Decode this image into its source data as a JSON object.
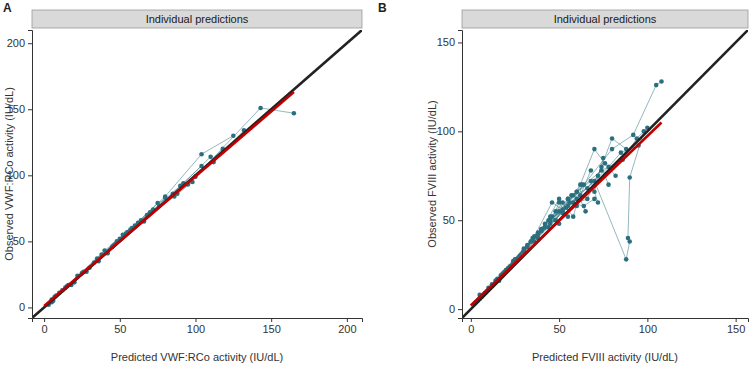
{
  "chart_data": [
    {
      "type": "scatter",
      "title": "Individual predictions",
      "annotations": [
        "A"
      ],
      "x_label": "Predicted VWF:RCo activity (IU/dL)",
      "y_label": "Observed VWF:RCo activity (IU/dL)",
      "xlim": [
        -8,
        210
      ],
      "ylim": [
        -8,
        210
      ],
      "xticks": [
        0,
        50,
        100,
        150,
        200
      ],
      "yticks": [
        0,
        50,
        100,
        150,
        200
      ],
      "grid": false,
      "series": [
        {
          "type": "scatter",
          "color": "#2b6f7f",
          "marker": "circle",
          "line_style": "solid",
          "x": [
            165,
            143,
            100,
            60,
            25,
            5
          ],
          "y": [
            147,
            151,
            99,
            61,
            26,
            6
          ]
        },
        {
          "type": "scatter",
          "color": "#2b6f7f",
          "marker": "circle",
          "line_style": "solid",
          "x": [
            125,
            104,
            80,
            50,
            20
          ],
          "y": [
            130,
            116,
            84,
            52,
            19
          ]
        },
        {
          "type": "scatter",
          "color": "#2b6f7f",
          "marker": "circle",
          "line_style": "solid",
          "x": [
            110,
            92,
            70,
            45,
            15
          ],
          "y": [
            114,
            94,
            72,
            46,
            16
          ]
        },
        {
          "type": "scatter",
          "color": "#2b6f7f",
          "marker": "circle",
          "line_style": "solid",
          "x": [
            98,
            86,
            62,
            40,
            12
          ],
          "y": [
            95,
            84,
            64,
            43,
            13
          ]
        },
        {
          "type": "scatter",
          "color": "#2b6f7f",
          "marker": "circle",
          "line_style": "solid",
          "x": [
            88,
            75,
            58,
            35,
            8
          ],
          "y": [
            86,
            79,
            60,
            37,
            9
          ]
        },
        {
          "type": "scatter",
          "color": "#2b6f7f",
          "marker": "circle",
          "line_style": "solid",
          "x": [
            80,
            66,
            52,
            30,
            5
          ],
          "y": [
            83,
            65,
            55,
            30,
            4
          ]
        },
        {
          "type": "scatter",
          "color": "#2b6f7f",
          "marker": "circle",
          "line_style": "solid",
          "x": [
            72,
            60,
            48,
            28,
            10,
            3
          ],
          "y": [
            74,
            62,
            50,
            27,
            11,
            2
          ]
        },
        {
          "type": "scatter",
          "color": "#2b6f7f",
          "marker": "circle",
          "line_style": "solid",
          "x": [
            64,
            55,
            42,
            22,
            7
          ],
          "y": [
            66,
            57,
            41,
            24,
            8
          ]
        },
        {
          "type": "scatter",
          "color": "#2b6f7f",
          "marker": "circle",
          "line_style": "solid",
          "x": [
            118,
            95,
            68,
            38,
            14
          ],
          "y": [
            120,
            93,
            70,
            40,
            15
          ]
        },
        {
          "type": "scatter",
          "color": "#2b6f7f",
          "marker": "circle",
          "line_style": "solid",
          "x": [
            132,
            112,
            85,
            47,
            18
          ],
          "y": [
            134,
            110,
            86,
            48,
            17
          ]
        },
        {
          "type": "scatter",
          "color": "#2b6f7f",
          "marker": "circle",
          "line_style": "solid",
          "x": [
            57,
            46,
            36,
            26,
            16,
            6
          ],
          "y": [
            59,
            47,
            35,
            27,
            17,
            5
          ]
        },
        {
          "type": "scatter",
          "color": "#2b6f7f",
          "marker": "circle",
          "line_style": "solid",
          "x": [
            104,
            90,
            76,
            54,
            33
          ],
          "y": [
            107,
            92,
            77,
            56,
            34
          ]
        },
        {
          "type": "line",
          "color": "#222222",
          "line_style": "solid",
          "x": [
            -8,
            210
          ],
          "y": [
            -8,
            210
          ]
        },
        {
          "type": "line",
          "color": "#c00000",
          "line_style": "solid",
          "x": [
            0,
            165
          ],
          "y": [
            1,
            163
          ]
        }
      ]
    },
    {
      "type": "scatter",
      "title": "Individual predictions",
      "annotations": [
        "B"
      ],
      "x_label": "Predicted FVIII activity (IU/dL)",
      "y_label": "Observed FVIII activity (IU/dL)",
      "xlim": [
        -5,
        157
      ],
      "ylim": [
        -5,
        157
      ],
      "xticks": [
        0,
        50,
        100,
        150
      ],
      "yticks": [
        0,
        50,
        100,
        150
      ],
      "grid": false,
      "series": [
        {
          "type": "scatter",
          "color": "#2b6f7f",
          "marker": "circle",
          "line_style": "solid",
          "x": [
            108,
            105,
            92,
            80,
            64,
            40,
            15,
            5
          ],
          "y": [
            128,
            126,
            98,
            90,
            70,
            45,
            17,
            6
          ]
        },
        {
          "type": "scatter",
          "color": "#2b6f7f",
          "marker": "circle",
          "line_style": "solid",
          "x": [
            98,
            90,
            89,
            90,
            88,
            70,
            45,
            20,
            8
          ],
          "y": [
            100,
            74,
            40,
            38,
            28,
            72,
            50,
            22,
            9
          ]
        },
        {
          "type": "scatter",
          "color": "#2b6f7f",
          "marker": "circle",
          "line_style": "solid",
          "x": [
            95,
            85,
            78,
            66,
            55,
            35,
            12
          ],
          "y": [
            92,
            88,
            80,
            68,
            62,
            40,
            14
          ]
        },
        {
          "type": "scatter",
          "color": "#2b6f7f",
          "marker": "circle",
          "line_style": "solid",
          "x": [
            88,
            80,
            72,
            60,
            50,
            30,
            10
          ],
          "y": [
            90,
            96,
            75,
            62,
            55,
            32,
            12
          ]
        },
        {
          "type": "scatter",
          "color": "#2b6f7f",
          "marker": "circle",
          "line_style": "solid",
          "x": [
            82,
            76,
            70,
            58,
            46,
            25,
            6
          ],
          "y": [
            75,
            82,
            90,
            60,
            52,
            28,
            7
          ]
        },
        {
          "type": "scatter",
          "color": "#2b6f7f",
          "marker": "circle",
          "line_style": "solid",
          "x": [
            78,
            74,
            66,
            55,
            42,
            22,
            4
          ],
          "y": [
            70,
            80,
            62,
            58,
            48,
            24,
            5
          ]
        },
        {
          "type": "scatter",
          "color": "#2b6f7f",
          "marker": "circle",
          "line_style": "solid",
          "x": [
            75,
            70,
            62,
            52,
            38,
            18,
            3
          ],
          "y": [
            85,
            66,
            70,
            55,
            40,
            20,
            4
          ]
        },
        {
          "type": "scatter",
          "color": "#2b6f7f",
          "marker": "circle",
          "line_style": "solid",
          "x": [
            72,
            68,
            58,
            48,
            34,
            16,
            5
          ],
          "y": [
            60,
            72,
            64,
            50,
            38,
            16,
            8
          ]
        },
        {
          "type": "scatter",
          "color": "#2b6f7f",
          "marker": "circle",
          "line_style": "solid",
          "x": [
            70,
            64,
            56,
            45,
            30,
            14,
            2
          ],
          "y": [
            62,
            58,
            60,
            48,
            33,
            15,
            3
          ]
        },
        {
          "type": "scatter",
          "color": "#2b6f7f",
          "marker": "circle",
          "line_style": "solid",
          "x": [
            68,
            62,
            54,
            44,
            28,
            12,
            6
          ],
          "y": [
            78,
            64,
            57,
            50,
            30,
            13,
            7
          ]
        },
        {
          "type": "scatter",
          "color": "#2b6f7f",
          "marker": "circle",
          "line_style": "solid",
          "x": [
            65,
            60,
            52,
            42,
            32,
            20,
            9
          ],
          "y": [
            55,
            66,
            54,
            46,
            35,
            22,
            10
          ]
        },
        {
          "type": "scatter",
          "color": "#2b6f7f",
          "marker": "circle",
          "line_style": "solid",
          "x": [
            63,
            58,
            50,
            40,
            26,
            10
          ],
          "y": [
            70,
            52,
            62,
            44,
            28,
            11
          ]
        },
        {
          "type": "scatter",
          "color": "#2b6f7f",
          "marker": "circle",
          "line_style": "solid",
          "x": [
            60,
            55,
            48,
            38,
            24,
            8
          ],
          "y": [
            58,
            62,
            50,
            43,
            27,
            9
          ]
        },
        {
          "type": "scatter",
          "color": "#2b6f7f",
          "marker": "circle",
          "line_style": "solid",
          "x": [
            57,
            52,
            46,
            36,
            21,
            7
          ],
          "y": [
            64,
            56,
            60,
            41,
            23,
            8
          ]
        },
        {
          "type": "scatter",
          "color": "#2b6f7f",
          "marker": "circle",
          "line_style": "solid",
          "x": [
            55,
            50,
            44,
            34,
            19,
            5
          ],
          "y": [
            52,
            60,
            46,
            38,
            21,
            6
          ]
        },
        {
          "type": "scatter",
          "color": "#2b6f7f",
          "marker": "circle",
          "line_style": "solid",
          "x": [
            52,
            48,
            40,
            32,
            17,
            4
          ],
          "y": [
            60,
            55,
            45,
            36,
            19,
            5
          ]
        },
        {
          "type": "scatter",
          "color": "#2b6f7f",
          "marker": "circle",
          "line_style": "solid",
          "x": [
            50,
            45,
            38,
            30,
            14,
            3
          ],
          "y": [
            48,
            52,
            42,
            34,
            16,
            4
          ]
        },
        {
          "type": "scatter",
          "color": "#2b6f7f",
          "marker": "circle",
          "line_style": "solid",
          "x": [
            100,
            94,
            86,
            74,
            60,
            36
          ],
          "y": [
            102,
            96,
            84,
            78,
            66,
            38
          ]
        },
        {
          "type": "line",
          "color": "#222222",
          "line_style": "solid",
          "x": [
            -5,
            157
          ],
          "y": [
            -5,
            157
          ]
        },
        {
          "type": "line",
          "color": "#c00000",
          "line_style": "solid",
          "x": [
            0,
            108
          ],
          "y": [
            2,
            105
          ]
        }
      ]
    }
  ]
}
